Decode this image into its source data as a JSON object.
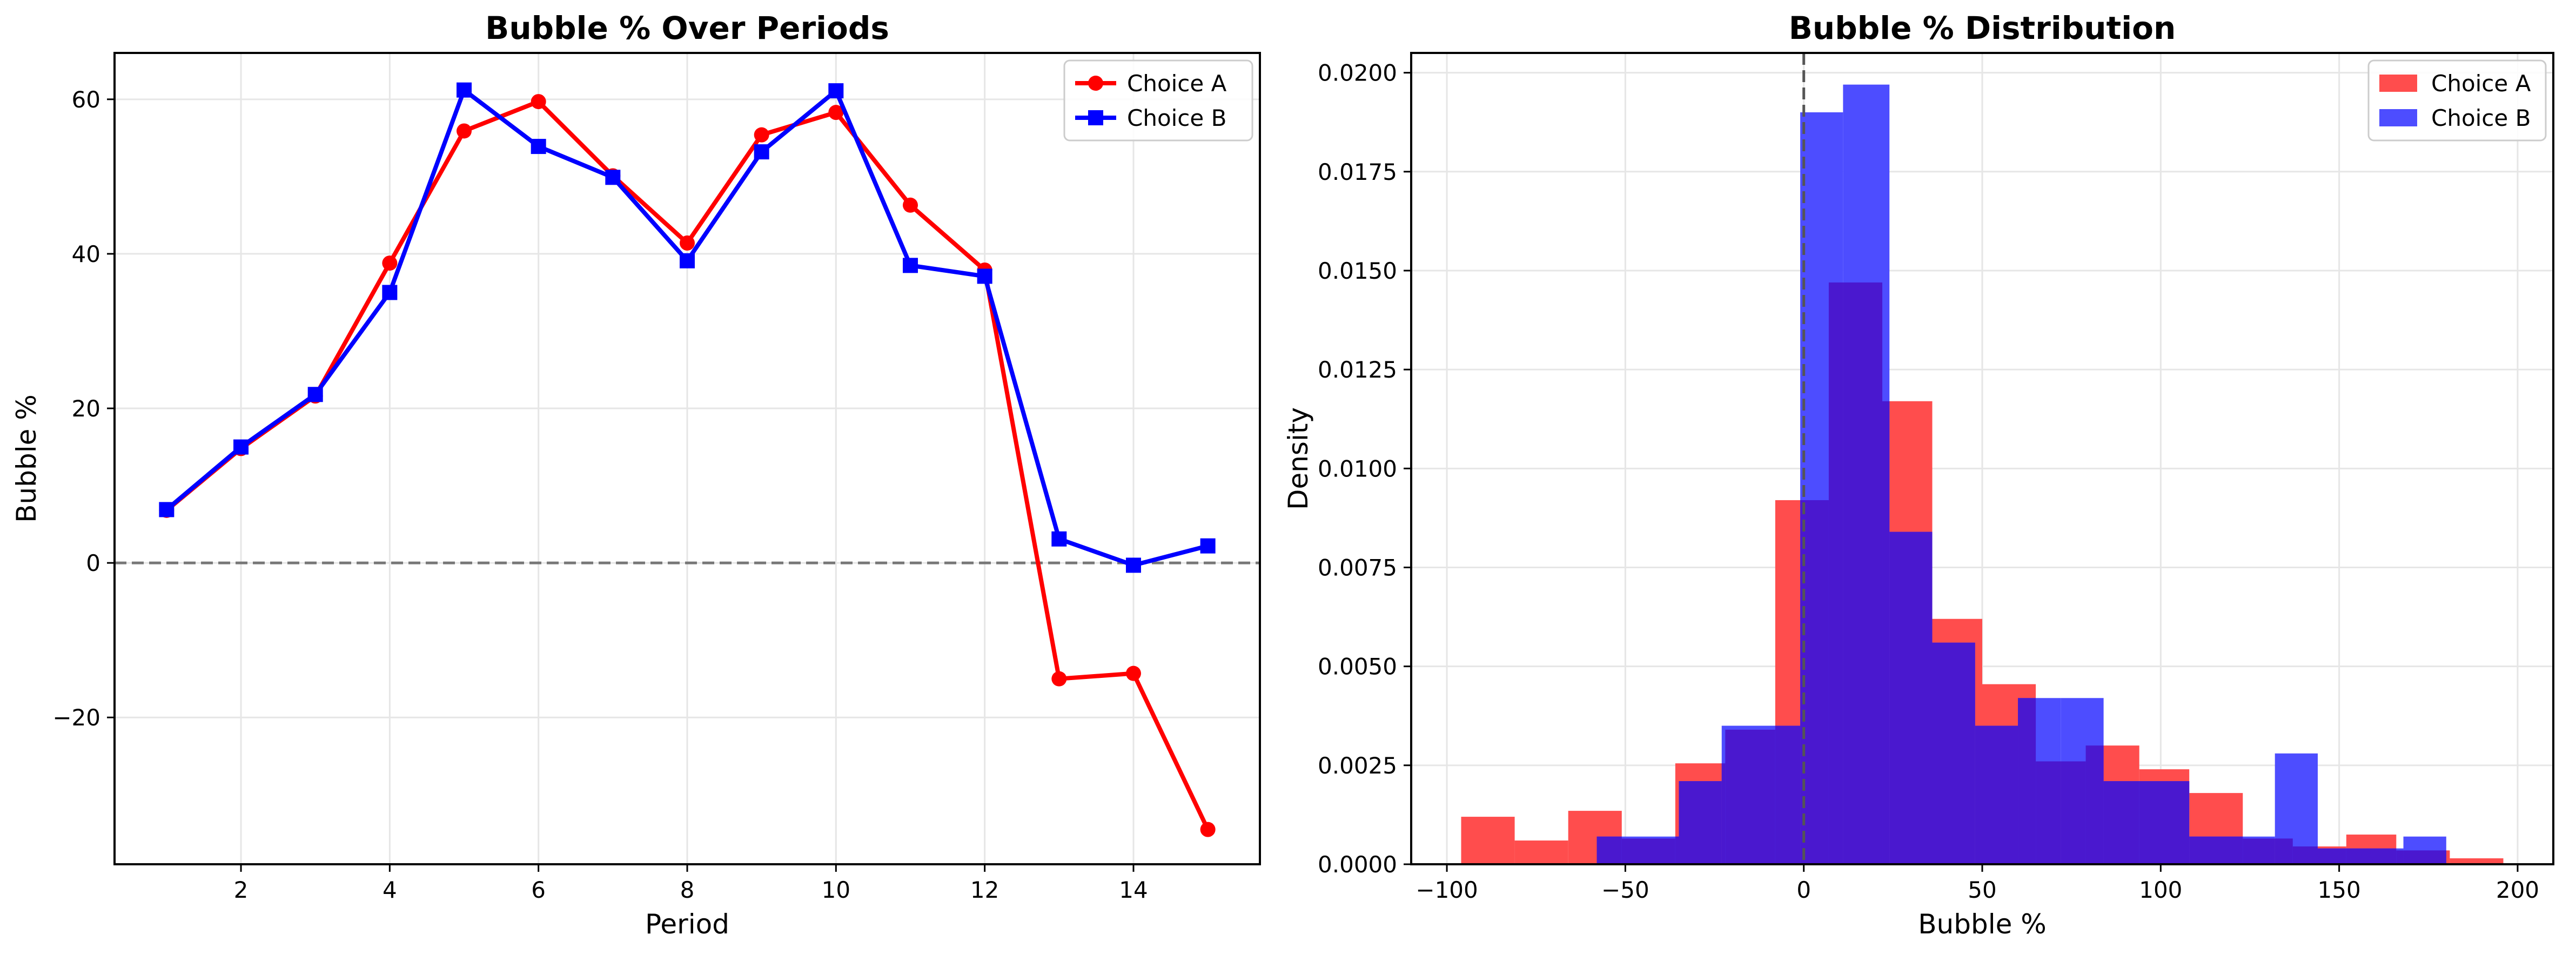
{
  "colors": {
    "choice_a": "#ff0000",
    "choice_b": "#0000ff",
    "hist_a": "#ff4d4d",
    "hist_b": "#4d4dff",
    "overlap": "#4a18cf"
  },
  "chart_data": [
    {
      "type": "line",
      "title": "Bubble % Over Periods",
      "xlabel": "Period",
      "ylabel": "Bubble %",
      "xlim": [
        0.3,
        15.7
      ],
      "ylim": [
        -39,
        66
      ],
      "xticks": [
        2,
        4,
        6,
        8,
        10,
        12,
        14
      ],
      "yticks": [
        -20,
        0,
        20,
        40,
        60
      ],
      "xtick_labels": [
        "2",
        "4",
        "6",
        "8",
        "10",
        "12",
        "14"
      ],
      "ytick_labels": [
        "−20",
        "0",
        "20",
        "40",
        "60"
      ],
      "grid": true,
      "legend_position": "top-right",
      "reference_line": {
        "y": 0,
        "style": "dashed",
        "color": "#777777"
      },
      "x": [
        1,
        2,
        3,
        4,
        5,
        6,
        7,
        8,
        9,
        10,
        11,
        12,
        13,
        14,
        15
      ],
      "series": [
        {
          "name": "Choice A",
          "marker": "circle",
          "values": [
            6.8,
            14.8,
            21.6,
            38.8,
            55.9,
            59.7,
            50.1,
            41.4,
            55.4,
            58.3,
            46.3,
            37.9,
            -15.0,
            -14.3,
            -34.5
          ]
        },
        {
          "name": "Choice B",
          "marker": "square",
          "values": [
            6.9,
            15.0,
            21.8,
            35.0,
            61.2,
            53.9,
            49.9,
            39.1,
            53.2,
            61.1,
            38.5,
            37.1,
            3.1,
            -0.3,
            2.2
          ]
        }
      ]
    },
    {
      "type": "histogram",
      "title": "Bubble % Distribution",
      "xlabel": "Bubble %",
      "ylabel": "Density",
      "xlim": [
        -110,
        210
      ],
      "ylim": [
        0,
        0.0205
      ],
      "xticks": [
        -100,
        -50,
        0,
        50,
        100,
        150,
        200
      ],
      "xtick_labels": [
        "−100",
        "−50",
        "0",
        "50",
        "100",
        "150",
        "200"
      ],
      "yticks": [
        0,
        0.0025,
        0.005,
        0.0075,
        0.01,
        0.0125,
        0.015,
        0.0175,
        0.02
      ],
      "ytick_labels": [
        "0.0000",
        "0.0025",
        "0.0050",
        "0.0075",
        "0.0100",
        "0.0125",
        "0.0150",
        "0.0175",
        "0.0200"
      ],
      "grid": true,
      "legend_position": "top-right",
      "reference_line": {
        "x": 0,
        "style": "dashed",
        "color": "#555555"
      },
      "series": [
        {
          "name": "Choice A",
          "bins": [
            {
              "x0": -96,
              "x1": -81,
              "density": 0.0012
            },
            {
              "x0": -81,
              "x1": -66,
              "density": 0.0006
            },
            {
              "x0": -66,
              "x1": -51,
              "density": 0.00135
            },
            {
              "x0": -51,
              "x1": -36,
              "density": 0.00065
            },
            {
              "x0": -36,
              "x1": -22,
              "density": 0.00255
            },
            {
              "x0": -22,
              "x1": -8,
              "density": 0.0034
            },
            {
              "x0": -8,
              "x1": 7,
              "density": 0.0092
            },
            {
              "x0": 7,
              "x1": 22,
              "density": 0.0147
            },
            {
              "x0": 22,
              "x1": 36,
              "density": 0.0117
            },
            {
              "x0": 36,
              "x1": 50,
              "density": 0.0062
            },
            {
              "x0": 50,
              "x1": 65,
              "density": 0.00455
            },
            {
              "x0": 65,
              "x1": 79,
              "density": 0.0026
            },
            {
              "x0": 79,
              "x1": 94,
              "density": 0.003
            },
            {
              "x0": 94,
              "x1": 108,
              "density": 0.0024
            },
            {
              "x0": 108,
              "x1": 123,
              "density": 0.0018
            },
            {
              "x0": 123,
              "x1": 137,
              "density": 0.00065
            },
            {
              "x0": 137,
              "x1": 152,
              "density": 0.00045
            },
            {
              "x0": 152,
              "x1": 166,
              "density": 0.00075
            },
            {
              "x0": 166,
              "x1": 181,
              "density": 0.00035
            },
            {
              "x0": 181,
              "x1": 196,
              "density": 0.00015
            }
          ]
        },
        {
          "name": "Choice B",
          "bins": [
            {
              "x0": -58,
              "x1": -35,
              "density": 0.0007
            },
            {
              "x0": -35,
              "x1": -23,
              "density": 0.0021
            },
            {
              "x0": -23,
              "x1": -1,
              "density": 0.0035
            },
            {
              "x0": -1,
              "x1": 11,
              "density": 0.019
            },
            {
              "x0": 11,
              "x1": 24,
              "density": 0.0197
            },
            {
              "x0": 24,
              "x1": 36,
              "density": 0.0084
            },
            {
              "x0": 36,
              "x1": 48,
              "density": 0.0056
            },
            {
              "x0": 48,
              "x1": 60,
              "density": 0.0035
            },
            {
              "x0": 60,
              "x1": 72,
              "density": 0.0042
            },
            {
              "x0": 72,
              "x1": 84,
              "density": 0.0042
            },
            {
              "x0": 84,
              "x1": 108,
              "density": 0.0021
            },
            {
              "x0": 108,
              "x1": 132,
              "density": 0.0007
            },
            {
              "x0": 132,
              "x1": 144,
              "density": 0.0028
            },
            {
              "x0": 144,
              "x1": 168,
              "density": 0.0004
            },
            {
              "x0": 168,
              "x1": 180,
              "density": 0.0007
            }
          ]
        }
      ]
    }
  ]
}
